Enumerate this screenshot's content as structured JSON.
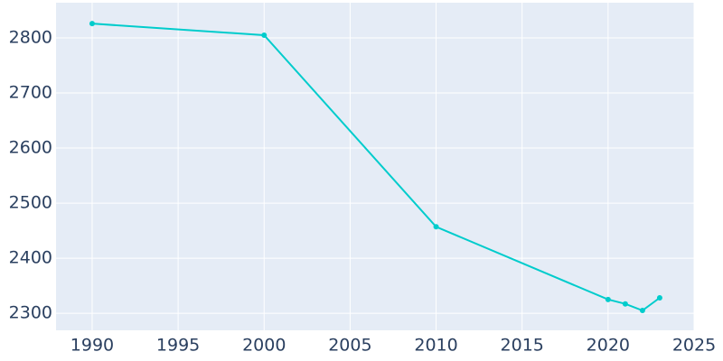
{
  "chart_data": {
    "type": "line",
    "x": [
      1990,
      2000,
      2010,
      2020,
      2021,
      2022,
      2023
    ],
    "series": [
      {
        "color": "#00cccc",
        "values": [
          2826,
          2805,
          2457,
          2325,
          2317,
          2305,
          2328
        ]
      }
    ],
    "xlim": [
      1987.9,
      2025
    ],
    "xticks": [
      1990,
      1995,
      2000,
      2005,
      2010,
      2015,
      2020,
      2025
    ],
    "ylim": [
      2269,
      2864
    ],
    "yticks": [
      2300,
      2400,
      2500,
      2600,
      2700,
      2800
    ],
    "grid": true
  }
}
